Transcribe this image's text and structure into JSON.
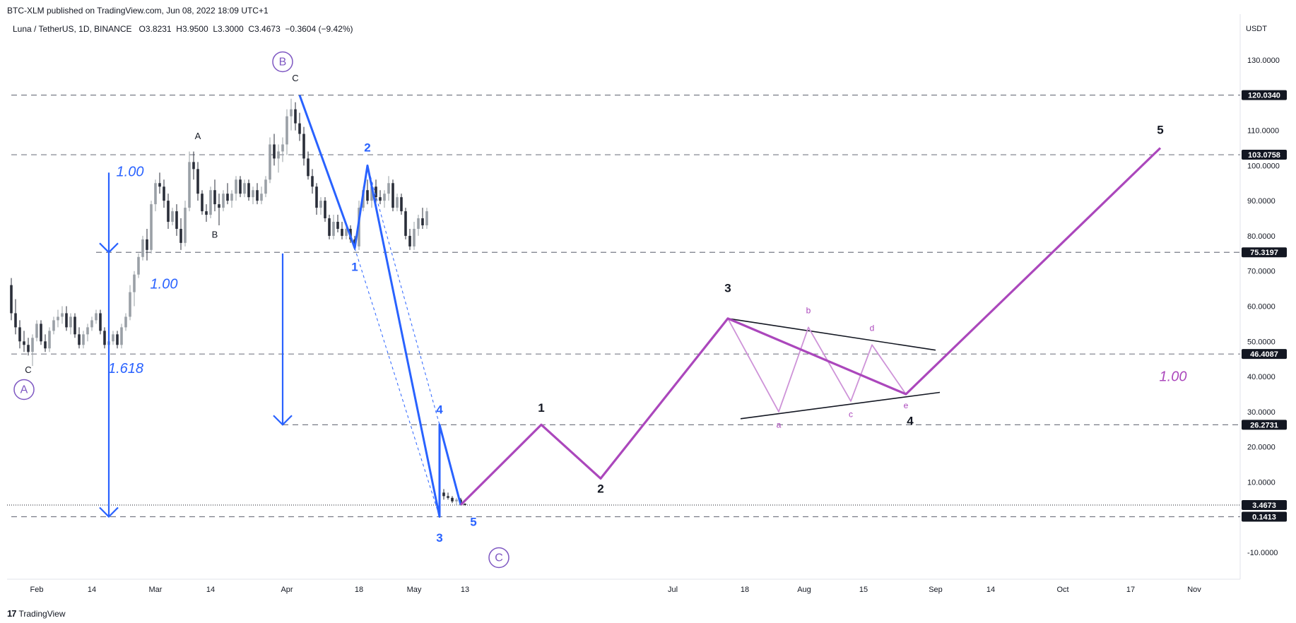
{
  "header": {
    "published": "BTC-XLM published on TradingView.com, Jun 08, 2022 18:09 UTC+1"
  },
  "symbol": {
    "name": "Luna / TetherUS, 1D, BINANCE",
    "open_label": "O",
    "open": "3.8231",
    "high_label": "H",
    "high": "3.9500",
    "low_label": "L",
    "low": "3.3000",
    "close_label": "C",
    "close": "3.4673",
    "change": "−0.3604 (−9.42%)"
  },
  "footer": {
    "brand": "TradingView"
  },
  "colors": {
    "candle_up": "#9aa0a6",
    "candle_down": "#2a2e39",
    "blue": "#2962ff",
    "purple": "#ab47bc",
    "purple_light": "#ce93d8",
    "circle": "#7e57c2",
    "dashed": "#787b86"
  },
  "chart_data": {
    "type": "candlestick",
    "currency_label": "USDT",
    "ylim": [
      -15,
      138
    ],
    "y_ticks": [
      130,
      110,
      100,
      90,
      80,
      70,
      60,
      50,
      40,
      30,
      20,
      10,
      -10
    ],
    "y_tick_labels": [
      "130.0000",
      "110.0000",
      "100.0000",
      "90.0000",
      "80.0000",
      "70.0000",
      "60.0000",
      "50.0000",
      "40.0000",
      "30.0000",
      "20.0000",
      "10.0000",
      "-10.0000"
    ],
    "x_ticks": [
      {
        "date": "2022-02-01",
        "label": "Feb"
      },
      {
        "date": "2022-02-14",
        "label": "14"
      },
      {
        "date": "2022-03-01",
        "label": "Mar"
      },
      {
        "date": "2022-03-14",
        "label": "14"
      },
      {
        "date": "2022-04-01",
        "label": "Apr"
      },
      {
        "date": "2022-04-18",
        "label": "18"
      },
      {
        "date": "2022-05-01",
        "label": "May"
      },
      {
        "date": "2022-05-13",
        "label": "13"
      },
      {
        "date": "2022-07-01",
        "label": "Jul"
      },
      {
        "date": "2022-07-18",
        "label": "18"
      },
      {
        "date": "2022-08-01",
        "label": "Aug"
      },
      {
        "date": "2022-08-15",
        "label": "15"
      },
      {
        "date": "2022-09-01",
        "label": "Sep"
      },
      {
        "date": "2022-09-14",
        "label": "14"
      },
      {
        "date": "2022-10-01",
        "label": "Oct"
      },
      {
        "date": "2022-10-17",
        "label": "17"
      },
      {
        "date": "2022-11-01",
        "label": "Nov"
      }
    ],
    "price_levels": [
      {
        "value": 120.034,
        "label": "120.0340",
        "from": "2022-01-26"
      },
      {
        "value": 103.0758,
        "label": "103.0758",
        "from": "2022-01-26"
      },
      {
        "value": 75.3197,
        "label": "75.3197",
        "from": "2022-02-15"
      },
      {
        "value": 46.4087,
        "label": "46.4087",
        "from": "2022-01-26"
      },
      {
        "value": 26.2731,
        "label": "26.2731",
        "from": "2022-03-31"
      },
      {
        "value": 0.1413,
        "label": "0.1413",
        "from": "2022-01-26"
      }
    ],
    "last_price": {
      "value": 3.4673,
      "label": "3.4673"
    },
    "candles": [
      [
        "2022-01-26",
        66,
        68,
        56,
        58
      ],
      [
        "2022-01-27",
        58,
        62,
        52,
        54
      ],
      [
        "2022-01-28",
        54,
        56,
        48,
        50
      ],
      [
        "2022-01-29",
        50,
        53,
        47,
        49
      ],
      [
        "2022-01-30",
        49,
        51,
        46,
        47
      ],
      [
        "2022-01-31",
        47,
        52,
        43,
        51
      ],
      [
        "2022-02-01",
        51,
        56,
        50,
        55
      ],
      [
        "2022-02-02",
        55,
        56,
        49,
        50
      ],
      [
        "2022-02-03",
        50,
        52,
        47,
        48
      ],
      [
        "2022-02-04",
        48,
        54,
        47,
        53
      ],
      [
        "2022-02-05",
        53,
        57,
        52,
        56
      ],
      [
        "2022-02-06",
        56,
        59,
        54,
        57
      ],
      [
        "2022-02-07",
        57,
        60,
        55,
        58
      ],
      [
        "2022-02-08",
        58,
        60,
        53,
        54
      ],
      [
        "2022-02-09",
        54,
        58,
        52,
        57
      ],
      [
        "2022-02-10",
        57,
        58,
        51,
        52
      ],
      [
        "2022-02-11",
        52,
        54,
        48,
        49
      ],
      [
        "2022-02-12",
        49,
        53,
        48,
        52
      ],
      [
        "2022-02-13",
        52,
        55,
        50,
        54
      ],
      [
        "2022-02-14",
        54,
        57,
        53,
        56
      ],
      [
        "2022-02-15",
        56,
        59,
        55,
        58
      ],
      [
        "2022-02-16",
        58,
        59,
        52,
        53
      ],
      [
        "2022-02-17",
        53,
        54,
        48,
        49
      ],
      [
        "2022-02-18",
        49,
        51,
        48,
        50
      ],
      [
        "2022-02-19",
        50,
        53,
        49,
        52
      ],
      [
        "2022-02-20",
        52,
        53,
        48,
        49
      ],
      [
        "2022-02-21",
        49,
        55,
        48,
        54
      ],
      [
        "2022-02-22",
        54,
        58,
        53,
        57
      ],
      [
        "2022-02-23",
        57,
        66,
        56,
        64
      ],
      [
        "2022-02-24",
        64,
        70,
        60,
        69
      ],
      [
        "2022-02-25",
        69,
        75,
        68,
        74
      ],
      [
        "2022-02-26",
        74,
        80,
        73,
        79
      ],
      [
        "2022-02-27",
        79,
        82,
        73,
        76
      ],
      [
        "2022-02-28",
        76,
        90,
        75,
        89
      ],
      [
        "2022-03-01",
        89,
        96,
        87,
        95
      ],
      [
        "2022-03-02",
        95,
        98,
        92,
        94
      ],
      [
        "2022-03-03",
        94,
        96,
        88,
        90
      ],
      [
        "2022-03-04",
        90,
        92,
        82,
        84
      ],
      [
        "2022-03-05",
        84,
        88,
        83,
        87
      ],
      [
        "2022-03-06",
        87,
        89,
        80,
        82
      ],
      [
        "2022-03-07",
        82,
        85,
        76,
        78
      ],
      [
        "2022-03-08",
        78,
        90,
        77,
        88
      ],
      [
        "2022-03-09",
        88,
        104,
        87,
        101
      ],
      [
        "2022-03-10",
        101,
        104,
        96,
        99
      ],
      [
        "2022-03-11",
        99,
        101,
        90,
        92
      ],
      [
        "2022-03-12",
        92,
        93,
        86,
        87
      ],
      [
        "2022-03-13",
        87,
        89,
        84,
        86
      ],
      [
        "2022-03-14",
        86,
        94,
        85,
        93
      ],
      [
        "2022-03-15",
        93,
        96,
        87,
        89
      ],
      [
        "2022-03-16",
        89,
        92,
        83,
        88
      ],
      [
        "2022-03-17",
        88,
        93,
        87,
        92
      ],
      [
        "2022-03-18",
        92,
        95,
        89,
        90
      ],
      [
        "2022-03-19",
        90,
        93,
        88,
        92
      ],
      [
        "2022-03-20",
        92,
        97,
        90,
        96
      ],
      [
        "2022-03-21",
        96,
        97,
        91,
        92
      ],
      [
        "2022-03-22",
        92,
        96,
        91,
        95
      ],
      [
        "2022-03-23",
        95,
        96,
        90,
        91
      ],
      [
        "2022-03-24",
        91,
        94,
        89,
        93
      ],
      [
        "2022-03-25",
        93,
        95,
        89,
        90
      ],
      [
        "2022-03-26",
        90,
        94,
        89,
        92
      ],
      [
        "2022-03-27",
        92,
        97,
        91,
        96
      ],
      [
        "2022-03-28",
        96,
        108,
        95,
        106
      ],
      [
        "2022-03-29",
        106,
        109,
        100,
        102
      ],
      [
        "2022-03-30",
        102,
        106,
        98,
        104
      ],
      [
        "2022-03-31",
        104,
        108,
        101,
        106
      ],
      [
        "2022-04-01",
        106,
        116,
        103,
        114
      ],
      [
        "2022-04-02",
        114,
        119,
        110,
        116
      ],
      [
        "2022-04-03",
        116,
        118,
        110,
        112
      ],
      [
        "2022-04-04",
        112,
        115,
        107,
        109
      ],
      [
        "2022-04-05",
        109,
        111,
        100,
        102
      ],
      [
        "2022-04-06",
        102,
        104,
        96,
        97
      ],
      [
        "2022-04-07",
        97,
        99,
        92,
        94
      ],
      [
        "2022-04-08",
        94,
        95,
        86,
        88
      ],
      [
        "2022-04-09",
        88,
        91,
        86,
        90
      ],
      [
        "2022-04-10",
        90,
        91,
        84,
        85
      ],
      [
        "2022-04-11",
        85,
        86,
        79,
        80
      ],
      [
        "2022-04-12",
        80,
        86,
        79,
        84
      ],
      [
        "2022-04-13",
        84,
        86,
        81,
        82
      ],
      [
        "2022-04-14",
        82,
        84,
        79,
        80
      ],
      [
        "2022-04-15",
        80,
        83,
        79,
        82
      ],
      [
        "2022-04-16",
        82,
        83,
        78,
        79
      ],
      [
        "2022-04-17",
        79,
        80,
        76,
        77
      ],
      [
        "2022-04-18",
        77,
        90,
        76,
        88
      ],
      [
        "2022-04-19",
        88,
        94,
        87,
        93
      ],
      [
        "2022-04-20",
        93,
        96,
        89,
        90
      ],
      [
        "2022-04-21",
        90,
        95,
        88,
        94
      ],
      [
        "2022-04-22",
        94,
        96,
        89,
        91
      ],
      [
        "2022-04-23",
        91,
        93,
        89,
        90
      ],
      [
        "2022-04-24",
        90,
        93,
        88,
        92
      ],
      [
        "2022-04-25",
        92,
        97,
        90,
        95
      ],
      [
        "2022-04-26",
        95,
        96,
        87,
        88
      ],
      [
        "2022-04-27",
        88,
        92,
        87,
        91
      ],
      [
        "2022-04-28",
        91,
        92,
        86,
        87
      ],
      [
        "2022-04-29",
        87,
        88,
        79,
        80
      ],
      [
        "2022-04-30",
        80,
        82,
        76,
        77
      ],
      [
        "2022-05-01",
        77,
        84,
        76,
        82
      ],
      [
        "2022-05-02",
        82,
        86,
        80,
        85
      ],
      [
        "2022-05-03",
        85,
        88,
        82,
        83
      ],
      [
        "2022-05-04",
        83,
        88,
        82,
        87
      ],
      [
        "2022-05-08",
        7,
        8,
        5,
        6
      ],
      [
        "2022-05-09",
        6,
        7,
        5,
        5.5
      ],
      [
        "2022-05-10",
        5.5,
        6,
        4,
        4.5
      ],
      [
        "2022-05-11",
        4.5,
        5.5,
        3.5,
        5
      ],
      [
        "2022-05-12",
        5,
        5.5,
        3.3,
        3.8
      ],
      [
        "2022-05-13",
        3.82,
        3.95,
        3.3,
        3.47
      ]
    ],
    "blue_wave": [
      [
        "2022-04-04",
        120
      ],
      [
        "2022-04-17",
        76.5
      ],
      [
        "2022-04-20",
        100
      ],
      [
        "2022-05-07",
        0.14
      ],
      [
        "2022-05-07",
        26.3
      ],
      [
        "2022-05-12",
        3.5
      ]
    ],
    "blue_dashed": [
      [
        [
          "2022-04-17",
          76.5
        ],
        [
          "2022-05-07",
          0.14
        ]
      ],
      [
        [
          "2022-04-20",
          100
        ],
        [
          "2022-05-07",
          26.3
        ]
      ]
    ],
    "purple_wave": [
      [
        "2022-05-12",
        3.5
      ],
      [
        "2022-05-31",
        26.3
      ],
      [
        "2022-06-14",
        11
      ],
      [
        "2022-07-14",
        56.5
      ],
      [
        "2022-08-25",
        35
      ],
      [
        "2022-10-24",
        105
      ]
    ],
    "triangle": [
      [
        "2022-07-14",
        56.5
      ],
      [
        "2022-07-26",
        30
      ],
      [
        "2022-08-02",
        54
      ],
      [
        "2022-08-12",
        33
      ],
      [
        "2022-08-17",
        49
      ],
      [
        "2022-08-25",
        35
      ]
    ],
    "triangle_lines": [
      [
        [
          "2022-07-14",
          56.5
        ],
        [
          "2022-09-01",
          47.5
        ]
      ],
      [
        [
          "2022-07-17",
          28
        ],
        [
          "2022-09-02",
          35.5
        ]
      ]
    ],
    "arrows": [
      {
        "x": "2022-02-18",
        "y1": 98,
        "y2": 75.3
      },
      {
        "x": "2022-02-18",
        "y1": 75.3,
        "y2": 0.14
      },
      {
        "x": "2022-03-31",
        "y1": 75,
        "y2": 26.3
      }
    ],
    "annotations": [
      {
        "text": "B",
        "x": "2022-03-31",
        "y": 128.5,
        "color": "#7e57c2",
        "size": 16,
        "circle": true
      },
      {
        "text": "A",
        "x": "2022-01-29",
        "y": 35.3,
        "color": "#7e57c2",
        "size": 16,
        "circle": true
      },
      {
        "text": "C",
        "x": "2022-05-21",
        "y": -12.5,
        "color": "#7e57c2",
        "size": 16,
        "circle": true
      },
      {
        "text": "C",
        "x": "2022-04-03",
        "y": 124,
        "color": "#131722",
        "size": 13
      },
      {
        "text": "A",
        "x": "2022-03-11",
        "y": 107.5,
        "color": "#131722",
        "size": 13
      },
      {
        "text": "B",
        "x": "2022-03-15",
        "y": 79.5,
        "color": "#131722",
        "size": 13
      },
      {
        "text": "C",
        "x": "2022-01-30",
        "y": 41,
        "color": "#131722",
        "size": 13
      },
      {
        "text": "1.00",
        "x": "2022-02-23",
        "y": 97,
        "color": "#2962ff",
        "size": 20,
        "italic": true
      },
      {
        "text": "1.00",
        "x": "2022-03-03",
        "y": 65,
        "color": "#2962ff",
        "size": 20,
        "italic": true
      },
      {
        "text": "1.618",
        "x": "2022-02-22",
        "y": 41,
        "color": "#2962ff",
        "size": 20,
        "italic": true
      },
      {
        "text": "1",
        "x": "2022-04-17",
        "y": 70,
        "color": "#2962ff",
        "size": 17,
        "bold": true
      },
      {
        "text": "2",
        "x": "2022-04-20",
        "y": 104,
        "color": "#2962ff",
        "size": 17,
        "bold": true
      },
      {
        "text": "3",
        "x": "2022-05-07",
        "y": -7,
        "color": "#2962ff",
        "size": 17,
        "bold": true
      },
      {
        "text": "4",
        "x": "2022-05-07",
        "y": 29.5,
        "color": "#2962ff",
        "size": 17,
        "bold": true
      },
      {
        "text": "5",
        "x": "2022-05-15",
        "y": -2.5,
        "color": "#2962ff",
        "size": 17,
        "bold": true
      },
      {
        "text": "1",
        "x": "2022-05-31",
        "y": 30,
        "color": "#131722",
        "size": 17,
        "bold": true
      },
      {
        "text": "2",
        "x": "2022-06-14",
        "y": 7,
        "color": "#131722",
        "size": 17,
        "bold": true
      },
      {
        "text": "3",
        "x": "2022-07-14",
        "y": 64,
        "color": "#131722",
        "size": 17,
        "bold": true
      },
      {
        "text": "4",
        "x": "2022-08-26",
        "y": 26.3,
        "color": "#131722",
        "size": 17,
        "bold": true
      },
      {
        "text": "5",
        "x": "2022-10-24",
        "y": 109,
        "color": "#131722",
        "size": 17,
        "bold": true
      },
      {
        "text": "1.00",
        "x": "2022-10-27",
        "y": 38.7,
        "color": "#ab47bc",
        "size": 20,
        "italic": true
      },
      {
        "text": "a",
        "x": "2022-07-26",
        "y": 25.5,
        "color": "#ab47bc",
        "size": 12
      },
      {
        "text": "b",
        "x": "2022-08-02",
        "y": 58,
        "color": "#ab47bc",
        "size": 12
      },
      {
        "text": "c",
        "x": "2022-08-12",
        "y": 28.5,
        "color": "#ab47bc",
        "size": 12
      },
      {
        "text": "d",
        "x": "2022-08-17",
        "y": 53,
        "color": "#ab47bc",
        "size": 12
      },
      {
        "text": "e",
        "x": "2022-08-25",
        "y": 31,
        "color": "#ab47bc",
        "size": 12
      }
    ]
  }
}
